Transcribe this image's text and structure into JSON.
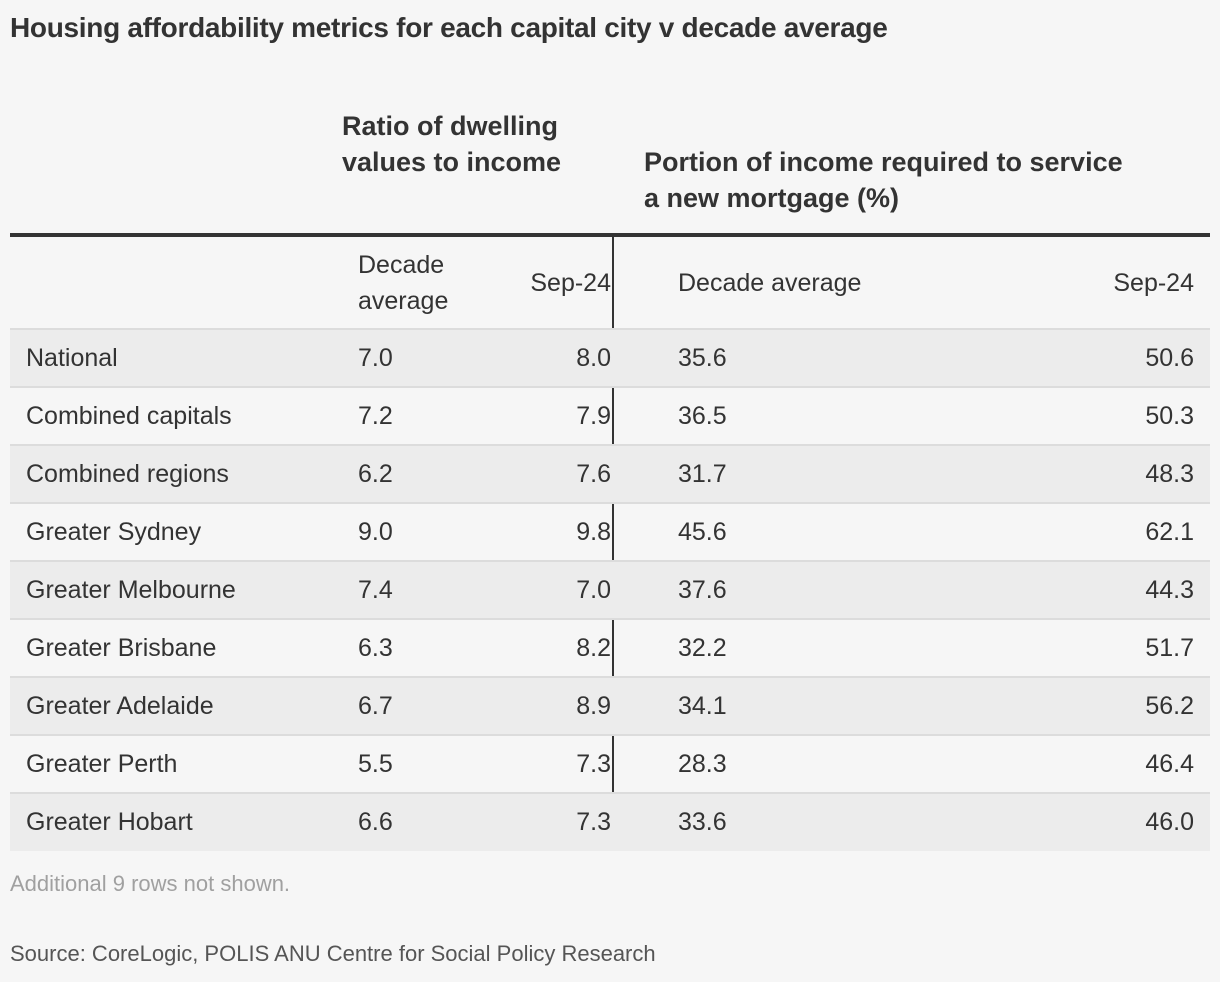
{
  "title": "Housing affordability metrics for each capital city v decade average",
  "chart_data": {
    "type": "table",
    "group_headers": [
      "Ratio of dwelling values to income",
      "Portion of income required to service a new mortgage (%)"
    ],
    "columns": [
      "",
      "Decade average",
      "Sep-24",
      "Decade average",
      "Sep-24"
    ],
    "rows": [
      [
        "National",
        "7.0",
        "8.0",
        "35.6",
        "50.6"
      ],
      [
        "Combined capitals",
        "7.2",
        "7.9",
        "36.5",
        "50.3"
      ],
      [
        "Combined regions",
        "6.2",
        "7.6",
        "31.7",
        "48.3"
      ],
      [
        "Greater Sydney",
        "9.0",
        "9.8",
        "45.6",
        "62.1"
      ],
      [
        "Greater Melbourne",
        "7.4",
        "7.0",
        "37.6",
        "44.3"
      ],
      [
        "Greater Brisbane",
        "6.3",
        "8.2",
        "32.2",
        "51.7"
      ],
      [
        "Greater Adelaide",
        "6.7",
        "8.9",
        "34.1",
        "56.2"
      ],
      [
        "Greater Perth",
        "5.5",
        "7.3",
        "28.3",
        "46.4"
      ],
      [
        "Greater Hobart",
        "6.6",
        "7.3",
        "33.6",
        "46.0"
      ]
    ]
  },
  "note": "Additional 9 rows not shown.",
  "source": "Source: CoreLogic, POLIS ANU Centre for Social Policy Research"
}
